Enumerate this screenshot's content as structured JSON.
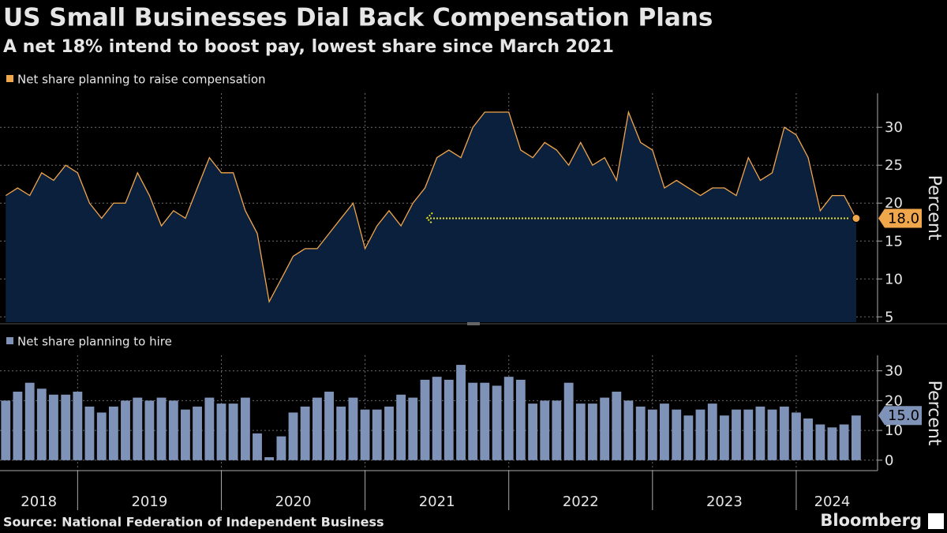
{
  "title": "US Small Businesses Dial Back Compensation Plans",
  "subtitle": "A net 18% intend to boost pay, lowest share since March 2021",
  "source": "Source: National Federation of Independent Business",
  "logo": "Bloomberg",
  "chart_data": [
    {
      "type": "area",
      "y_label": "Percent",
      "grid": true,
      "x": [
        2018.5,
        2018.583,
        2018.667,
        2018.75,
        2018.833,
        2018.917,
        2019.0,
        2019.083,
        2019.167,
        2019.25,
        2019.333,
        2019.417,
        2019.5,
        2019.583,
        2019.667,
        2019.75,
        2019.833,
        2019.917,
        2020.0,
        2020.083,
        2020.167,
        2020.25,
        2020.333,
        2020.417,
        2020.5,
        2020.583,
        2020.667,
        2020.75,
        2020.833,
        2020.917,
        2021.0,
        2021.083,
        2021.167,
        2021.25,
        2021.333,
        2021.417,
        2021.5,
        2021.583,
        2021.667,
        2021.75,
        2021.833,
        2021.917,
        2022.0,
        2022.083,
        2022.167,
        2022.25,
        2022.333,
        2022.417,
        2022.5,
        2022.583,
        2022.667,
        2022.75,
        2022.833,
        2022.917,
        2023.0,
        2023.083,
        2023.167,
        2023.25,
        2023.333,
        2023.417,
        2023.5,
        2023.583,
        2023.667,
        2023.75,
        2023.833,
        2023.917,
        2024.0,
        2024.083,
        2024.167,
        2024.25,
        2024.333,
        2024.417
      ],
      "xlim": [
        2018.46,
        2024.5
      ],
      "xticks": [
        2018,
        2019,
        2020,
        2021,
        2022,
        2023,
        2024
      ],
      "ylim": [
        4.3,
        34.5
      ],
      "yticks": [
        5,
        10,
        15,
        20,
        25,
        30
      ],
      "series": [
        {
          "name": "Net share planning to raise compensation",
          "color": "#f0a64a",
          "fill": "#0b203d",
          "values": [
            21,
            22,
            21,
            24,
            23,
            25,
            24,
            20,
            18,
            20,
            20,
            24,
            21,
            17,
            19,
            18,
            22,
            26,
            24,
            24,
            19,
            16,
            7,
            10,
            13,
            14,
            14,
            16,
            18,
            20,
            14,
            17,
            19,
            17,
            20,
            22,
            26,
            27,
            26,
            30,
            32,
            32,
            32,
            27,
            26,
            28,
            27,
            25,
            28,
            25,
            26,
            23,
            32,
            28,
            27,
            22,
            23,
            22,
            21,
            22,
            22,
            21,
            26,
            23,
            24,
            30,
            29,
            26,
            19,
            21,
            21,
            18
          ],
          "value_labels": [
            null,
            null,
            null,
            null,
            null,
            null,
            null,
            null,
            null,
            null,
            null,
            null,
            null,
            null,
            null,
            null,
            null,
            null,
            null,
            null,
            null,
            null,
            null,
            null,
            null,
            null,
            null,
            null,
            null,
            null,
            null,
            null,
            null,
            null,
            null,
            null,
            null,
            null,
            null,
            null,
            null,
            null,
            null,
            null,
            null,
            null,
            null,
            null,
            null,
            null,
            null,
            null,
            null,
            null,
            null,
            null,
            null,
            null,
            null,
            null,
            null,
            null,
            null,
            null,
            null,
            null,
            null,
            null,
            null,
            null,
            null,
            "18.0"
          ]
        }
      ]
    },
    {
      "type": "bar",
      "y_label": "Percent",
      "grid": true,
      "x": [
        2018.5,
        2018.583,
        2018.667,
        2018.75,
        2018.833,
        2018.917,
        2019.0,
        2019.083,
        2019.167,
        2019.25,
        2019.333,
        2019.417,
        2019.5,
        2019.583,
        2019.667,
        2019.75,
        2019.833,
        2019.917,
        2020.0,
        2020.083,
        2020.167,
        2020.25,
        2020.333,
        2020.417,
        2020.5,
        2020.583,
        2020.667,
        2020.75,
        2020.833,
        2020.917,
        2021.0,
        2021.083,
        2021.167,
        2021.25,
        2021.333,
        2021.417,
        2021.5,
        2021.583,
        2021.667,
        2021.75,
        2021.833,
        2021.917,
        2022.0,
        2022.083,
        2022.167,
        2022.25,
        2022.333,
        2022.417,
        2022.5,
        2022.583,
        2022.667,
        2022.75,
        2022.833,
        2022.917,
        2023.0,
        2023.083,
        2023.167,
        2023.25,
        2023.333,
        2023.417,
        2023.5,
        2023.583,
        2023.667,
        2023.75,
        2023.833,
        2023.917,
        2024.0,
        2024.083,
        2024.167,
        2024.25,
        2024.333,
        2024.417
      ],
      "xlim": [
        2018.46,
        2024.5
      ],
      "xticks": [
        2018,
        2019,
        2020,
        2021,
        2022,
        2023,
        2024
      ],
      "ylim": [
        -3.5,
        35.2
      ],
      "yticks": [
        0,
        10,
        20,
        30
      ],
      "series": [
        {
          "name": "Net share planning to hire",
          "color": "#7f93b8",
          "values": [
            20,
            23,
            26,
            24,
            22,
            22,
            23,
            18,
            16,
            18,
            20,
            21,
            20,
            21,
            20,
            17,
            18,
            21,
            19,
            19,
            21,
            9,
            1,
            8,
            16,
            18,
            21,
            23,
            18,
            21,
            17,
            17,
            18,
            22,
            21,
            27,
            28,
            27,
            32,
            26,
            26,
            25,
            28,
            27,
            19,
            20,
            20,
            26,
            19,
            19,
            21,
            23,
            20,
            18,
            17,
            19,
            17,
            15,
            17,
            19,
            15,
            17,
            17,
            18,
            17,
            18,
            16,
            14,
            12,
            11,
            12,
            15
          ],
          "value_labels": [
            null,
            null,
            null,
            null,
            null,
            null,
            null,
            null,
            null,
            null,
            null,
            null,
            null,
            null,
            null,
            null,
            null,
            null,
            null,
            null,
            null,
            null,
            null,
            null,
            null,
            null,
            null,
            null,
            null,
            null,
            null,
            null,
            null,
            null,
            null,
            null,
            null,
            null,
            null,
            null,
            null,
            null,
            null,
            null,
            null,
            null,
            null,
            null,
            null,
            null,
            null,
            null,
            null,
            null,
            null,
            null,
            null,
            null,
            null,
            null,
            null,
            null,
            null,
            null,
            null,
            null,
            null,
            null,
            null,
            null,
            null,
            "15.0"
          ]
        }
      ]
    }
  ]
}
